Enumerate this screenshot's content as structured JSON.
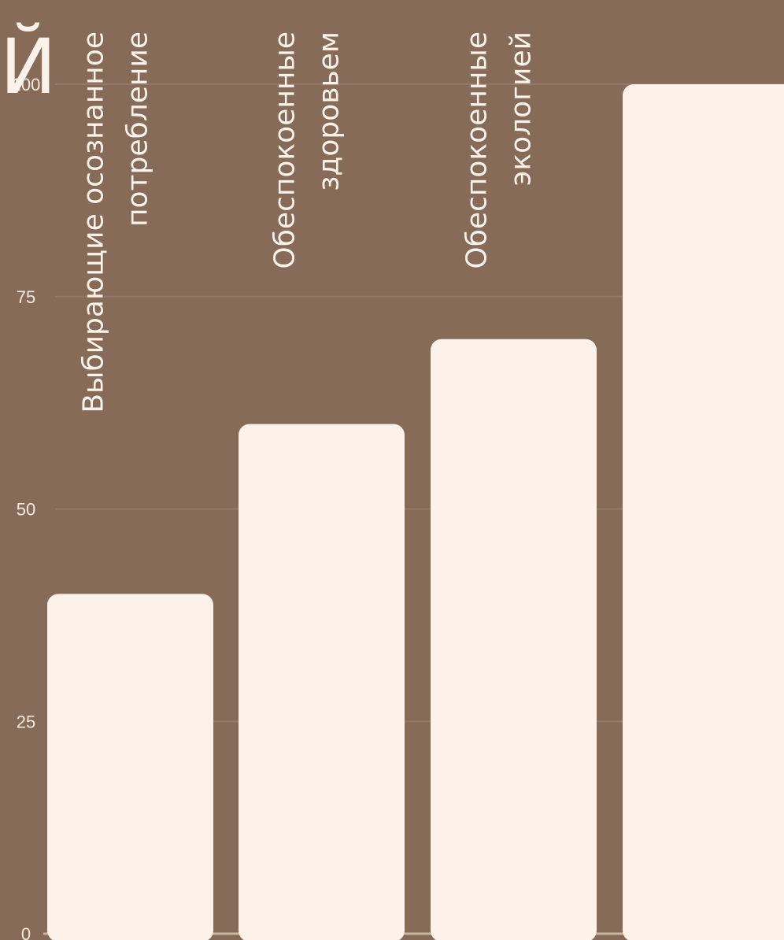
{
  "chart_data": {
    "type": "bar",
    "title": "Й",
    "categories": [
      [
        "Выбирающие осознанное",
        "потребление"
      ],
      [
        "Обеспокоенные",
        "здоровьем"
      ],
      [
        "Обеспокоенные",
        "экологией"
      ],
      [
        ""
      ]
    ],
    "values": [
      40,
      60,
      70,
      100
    ],
    "yticks": [
      "0",
      "25",
      "50",
      "75",
      "100"
    ],
    "ylim": [
      0,
      100
    ],
    "grid": true,
    "colors": {
      "background": "#856b58",
      "bar": "#fcf2ea",
      "text": "#f5e9df"
    }
  }
}
